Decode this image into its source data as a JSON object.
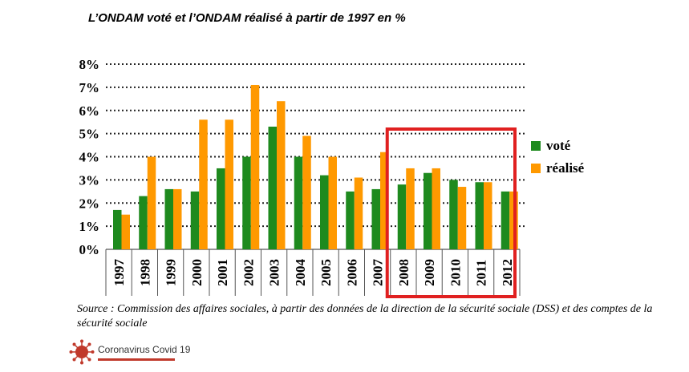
{
  "chart_data": {
    "type": "bar",
    "title": "L’ONDAM voté et l’ONDAM réalisé à partir de 1997 en %",
    "xlabel": "",
    "ylabel": "",
    "ylim": [
      0,
      8
    ],
    "yticks": [
      "0%",
      "1%",
      "2%",
      "3%",
      "4%",
      "5%",
      "6%",
      "7%",
      "8%"
    ],
    "grid": "horizontal dotted",
    "legend_position": "right",
    "categories": [
      "1997",
      "1998",
      "1999",
      "2000",
      "2001",
      "2002",
      "2003",
      "2004",
      "2005",
      "2006",
      "2007",
      "2008",
      "2009",
      "2010",
      "2011",
      "2012"
    ],
    "series": [
      {
        "name": "voté",
        "color": "#1e8a1e",
        "values": [
          1.7,
          2.3,
          2.6,
          2.5,
          3.5,
          4.0,
          5.3,
          4.0,
          3.2,
          2.5,
          2.6,
          2.8,
          3.3,
          3.0,
          2.9,
          2.5
        ]
      },
      {
        "name": "réalisé",
        "color": "#ff9900",
        "values": [
          1.5,
          4.0,
          2.6,
          5.6,
          5.6,
          7.1,
          6.4,
          4.9,
          4.0,
          3.1,
          4.2,
          3.5,
          3.5,
          2.7,
          2.9,
          2.5
        ]
      }
    ],
    "highlight": {
      "from": "2008",
      "to": "2012",
      "color": "#e02020"
    }
  },
  "source": {
    "text": "Source : Commission des affaires sociales, à partir des données de la direction de la sécurité sociale (DSS) et des comptes de la sécurité sociale"
  },
  "logo": {
    "text": "Coronavirus Covid 19",
    "icon": "virus-icon",
    "accent_color": "#c0392b"
  }
}
